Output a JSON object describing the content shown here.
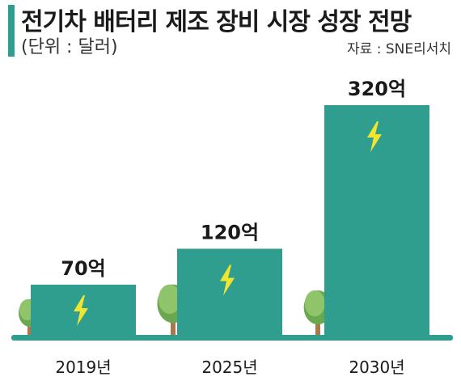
{
  "header": {
    "title": "전기차 배터리 제조 장비 시장 성장 전망",
    "unit": "(단위 : 달러)",
    "source": "자료 : SNE리서치"
  },
  "colors": {
    "bar": "#2f9e8f",
    "bolt": "#f2e52e",
    "ground": "#2f9e8f",
    "tree_light": "#8fc46b",
    "tree_dark": "#6aa84f",
    "trunk": "#a9784b",
    "text": "#1a1a1a"
  },
  "chart_data": {
    "type": "bar",
    "categories": [
      "2019년",
      "2025년",
      "2030년"
    ],
    "values": [
      70,
      120,
      320
    ],
    "value_labels": [
      "70억",
      "120억",
      "320억"
    ],
    "ylim": [
      0,
      320
    ],
    "grid": false
  }
}
